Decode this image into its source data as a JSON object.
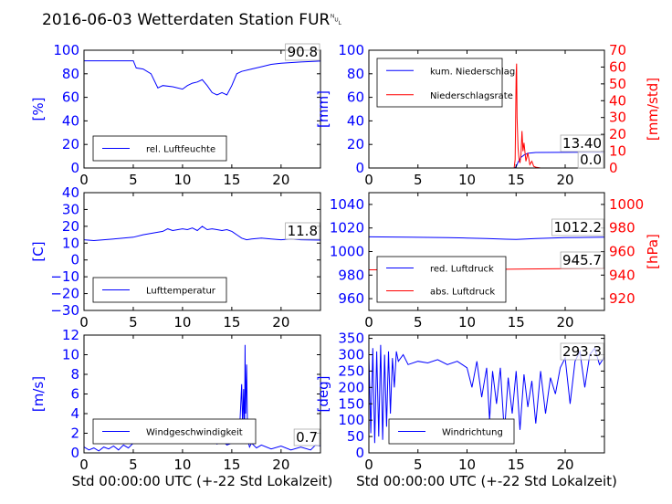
{
  "title": "2016-06-03 Wetterdaten Station FUR␀",
  "chart_data": [
    {
      "type": "line",
      "id": "humidity",
      "ylabel": "[%]",
      "xlim": [
        0,
        24
      ],
      "ylim": [
        0,
        100
      ],
      "xticks": [
        "0",
        "5",
        "10",
        "15",
        "20"
      ],
      "yticks": [
        "0",
        "20",
        "40",
        "60",
        "80",
        "100"
      ],
      "annotation": "90.8",
      "grid": false,
      "legend": "bottom-left",
      "series": [
        {
          "name": "rel. Luftfeuchte",
          "color": "#0000ff",
          "x": [
            0,
            2,
            5,
            5.3,
            6,
            6.8,
            7.5,
            8,
            9,
            10,
            10.5,
            11,
            11.5,
            12,
            12.5,
            13,
            13.5,
            14,
            14.5,
            15,
            15.5,
            16,
            17,
            18,
            19,
            20,
            22,
            24
          ],
          "y": [
            91,
            91,
            91,
            85,
            84,
            80,
            68,
            70,
            69,
            67,
            70,
            72,
            73,
            75,
            70,
            64,
            62,
            64,
            62,
            70,
            80,
            82,
            84,
            86,
            88,
            89,
            90,
            90.8
          ]
        }
      ]
    },
    {
      "type": "line",
      "id": "rain",
      "ylabel": "[mm]",
      "ylabel2": "[mm/std]",
      "xlim": [
        0,
        24
      ],
      "ylim": [
        0,
        100
      ],
      "ylim2": [
        0,
        70
      ],
      "xticks": [
        "0",
        "5",
        "10",
        "15",
        "20"
      ],
      "yticks": [
        "0",
        "20",
        "40",
        "60",
        "80",
        "100"
      ],
      "yticks2": [
        "0",
        "10",
        "20",
        "30",
        "40",
        "50",
        "60",
        "70"
      ],
      "annotations": [
        "13.40",
        "0.0"
      ],
      "grid": false,
      "legend": "top-left",
      "series": [
        {
          "name": "kum. Niederschlag",
          "color": "#0000ff",
          "axis": "left",
          "x": [
            0,
            14.8,
            15.0,
            15.2,
            15.5,
            15.8,
            16.2,
            17,
            24
          ],
          "y": [
            0,
            0,
            1,
            5,
            9,
            11,
            12.5,
            13.2,
            13.4
          ]
        },
        {
          "name": "Niederschlagsrate",
          "color": "#ff0000",
          "axis": "right",
          "x": [
            0,
            14.8,
            14.9,
            15.0,
            15.05,
            15.1,
            15.2,
            15.3,
            15.4,
            15.5,
            15.6,
            15.7,
            15.8,
            16.0,
            16.2,
            16.4,
            16.6,
            16.8,
            17.0,
            17.5,
            24
          ],
          "y": [
            0,
            0,
            5,
            55,
            62,
            30,
            12,
            5,
            3,
            8,
            22,
            10,
            15,
            4,
            9,
            2,
            4,
            1,
            0.5,
            0,
            0
          ]
        }
      ]
    },
    {
      "type": "line",
      "id": "temperature",
      "ylabel": "[C]",
      "xlim": [
        0,
        24
      ],
      "ylim": [
        -30,
        40
      ],
      "xticks": [
        "0",
        "5",
        "10",
        "15",
        "20"
      ],
      "yticks": [
        "−30",
        "−20",
        "−10",
        "0",
        "10",
        "20",
        "30",
        "40"
      ],
      "annotation": "11.8",
      "grid": false,
      "legend": "bottom-left",
      "series": [
        {
          "name": "Lufttemperatur",
          "color": "#0000ff",
          "x": [
            0,
            1,
            2,
            3,
            4,
            5,
            6,
            7,
            8,
            8.5,
            9,
            10,
            10.5,
            11,
            11.5,
            12,
            12.5,
            13,
            13.5,
            14,
            14.5,
            15,
            15.5,
            16,
            16.5,
            17,
            18,
            19,
            20,
            21,
            22,
            24
          ],
          "y": [
            12,
            11.5,
            12,
            12.5,
            13,
            13.5,
            15,
            16,
            17,
            18.5,
            17.5,
            18.5,
            18,
            19,
            17.5,
            20,
            18,
            18.5,
            18,
            17.5,
            18,
            17,
            15,
            13,
            12,
            12.5,
            13,
            12.5,
            12,
            12.5,
            12,
            11.8
          ]
        }
      ]
    },
    {
      "type": "line",
      "id": "pressure",
      "ylabel2": "[hPa]",
      "xlim": [
        0,
        24
      ],
      "ylim": [
        950,
        1050
      ],
      "ylim2": [
        910,
        1010
      ],
      "xticks": [
        "0",
        "5",
        "10",
        "15",
        "20"
      ],
      "yticks": [
        "960",
        "980",
        "1000",
        "1020",
        "1040"
      ],
      "yticks2": [
        "920",
        "940",
        "960",
        "980",
        "1000"
      ],
      "annotations": [
        "1012.2",
        "945.7"
      ],
      "grid": false,
      "legend": "bottom-left",
      "series": [
        {
          "name": "red. Luftdruck",
          "color": "#0000ff",
          "axis": "left",
          "x": [
            0,
            4,
            8,
            10,
            12,
            14,
            15,
            17,
            20,
            24
          ],
          "y": [
            1012.5,
            1012.2,
            1011.8,
            1011.5,
            1011,
            1010.5,
            1010.2,
            1011,
            1011.8,
            1012.2
          ]
        },
        {
          "name": "abs. Luftdruck",
          "color": "#ff0000",
          "axis": "right",
          "x": [
            0,
            5,
            10,
            14,
            16,
            20,
            24
          ],
          "y": [
            944.5,
            944.6,
            944.8,
            945,
            945.2,
            945.5,
            945.7
          ]
        }
      ]
    },
    {
      "type": "line",
      "id": "wind-speed",
      "ylabel": "[m/s]",
      "xlabel": "Std 00:00:00 UTC (+-22 Std Lokalzeit)",
      "xlim": [
        0,
        24
      ],
      "ylim": [
        0,
        12
      ],
      "xticks": [
        "0",
        "5",
        "10",
        "15",
        "20"
      ],
      "yticks": [
        "0",
        "2",
        "4",
        "6",
        "8",
        "10",
        "12"
      ],
      "annotation": "0.7",
      "grid": false,
      "legend": "bottom-left",
      "series": [
        {
          "name": "Windgeschwindigkeit",
          "color": "#0000ff",
          "x": [
            0,
            0.5,
            1,
            1.5,
            2,
            2.5,
            3,
            3.5,
            4,
            4.5,
            5,
            5.5,
            6,
            6.5,
            7,
            7.5,
            8,
            8.5,
            9,
            9.5,
            10,
            10.5,
            11,
            11.5,
            12,
            12.5,
            13,
            13.5,
            14,
            14.5,
            15,
            15.5,
            15.8,
            16,
            16.1,
            16.2,
            16.3,
            16.35,
            16.4,
            16.5,
            16.6,
            16.7,
            16.8,
            17,
            17.5,
            18,
            19,
            20,
            21,
            22,
            23,
            23.5,
            24
          ],
          "y": [
            0.6,
            0.3,
            0.5,
            0.2,
            0.6,
            0.4,
            0.7,
            0.3,
            0.8,
            0.5,
            1.0,
            1.4,
            1.2,
            1.6,
            1.3,
            1.5,
            1.8,
            1.3,
            1.6,
            1.2,
            1.5,
            1.1,
            1.7,
            1.3,
            1.6,
            1.0,
            1.4,
            0.9,
            1.3,
            0.8,
            1.0,
            1.5,
            2.5,
            7.0,
            2.5,
            6.5,
            1.5,
            11.0,
            4.0,
            9.0,
            2.0,
            1.0,
            0.6,
            1.0,
            0.5,
            0.8,
            0.4,
            0.7,
            0.3,
            0.6,
            0.3,
            0.8,
            0.7
          ]
        }
      ]
    },
    {
      "type": "line",
      "id": "wind-direction",
      "ylabel": "[deg]",
      "xlabel": "Std 00:00:00 UTC (+-22 Std Lokalzeit)",
      "xlim": [
        0,
        24
      ],
      "ylim": [
        0,
        360
      ],
      "xticks": [
        "0",
        "5",
        "10",
        "15",
        "20"
      ],
      "yticks": [
        "0",
        "50",
        "100",
        "150",
        "200",
        "250",
        "300",
        "350"
      ],
      "annotation": "293.3",
      "grid": false,
      "legend": "bottom-left",
      "series": [
        {
          "name": "Windrichtung",
          "color": "#0000ff",
          "x": [
            0,
            0.2,
            0.4,
            0.6,
            0.8,
            1.0,
            1.2,
            1.4,
            1.6,
            1.8,
            2.0,
            2.2,
            2.4,
            2.6,
            2.8,
            3.0,
            3.5,
            4,
            5,
            6,
            7,
            8,
            9,
            10,
            10.5,
            11,
            11.5,
            12,
            12.3,
            12.6,
            13,
            13.4,
            13.8,
            14.2,
            14.6,
            15,
            15.4,
            15.8,
            16.2,
            16.6,
            17,
            17.5,
            18,
            18.5,
            19,
            19.5,
            20,
            20.5,
            21,
            21.5,
            22,
            22.5,
            23,
            23.5,
            24
          ],
          "y": [
            300,
            60,
            320,
            30,
            310,
            50,
            330,
            40,
            300,
            80,
            310,
            120,
            290,
            200,
            310,
            280,
            300,
            270,
            280,
            275,
            285,
            270,
            280,
            260,
            200,
            280,
            170,
            260,
            100,
            250,
            150,
            260,
            60,
            230,
            120,
            250,
            70,
            240,
            140,
            220,
            90,
            250,
            120,
            230,
            180,
            260,
            290,
            150,
            280,
            310,
            200,
            300,
            320,
            270,
            293
          ]
        }
      ]
    }
  ]
}
